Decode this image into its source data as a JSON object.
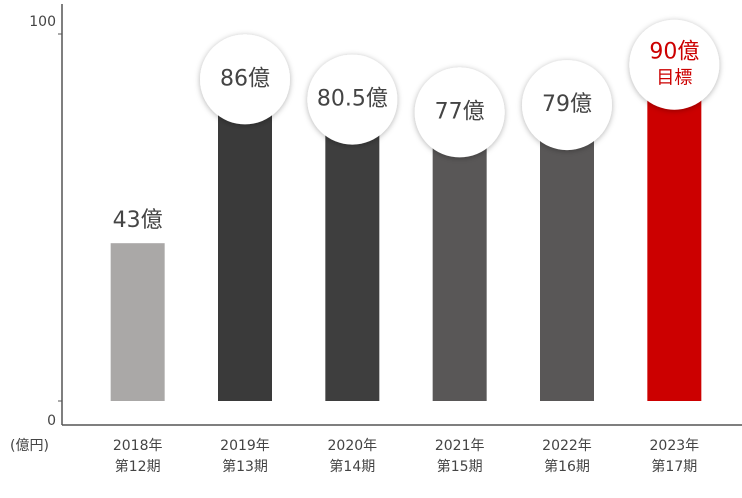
{
  "chart_data": {
    "type": "bar",
    "unit_label": "(億円)",
    "categories": [
      "2018年",
      "2019年",
      "2020年",
      "2021年",
      "2022年",
      "2023年"
    ],
    "periods": [
      "第12期",
      "第13期",
      "第14期",
      "第15期",
      "第16期",
      "第17期"
    ],
    "values": [
      43,
      86,
      80.5,
      77,
      79,
      90
    ],
    "value_labels": [
      "43億",
      "86億",
      "80.5億",
      "77億",
      "79億",
      "90億"
    ],
    "colors": [
      "#aaa8a7",
      "#3a3a3a",
      "#3e3e3e",
      "#595757",
      "#595757",
      "#cc0000"
    ],
    "target_annotation": "目標",
    "ylim": [
      0,
      100
    ],
    "yticks": [
      0,
      100
    ]
  }
}
